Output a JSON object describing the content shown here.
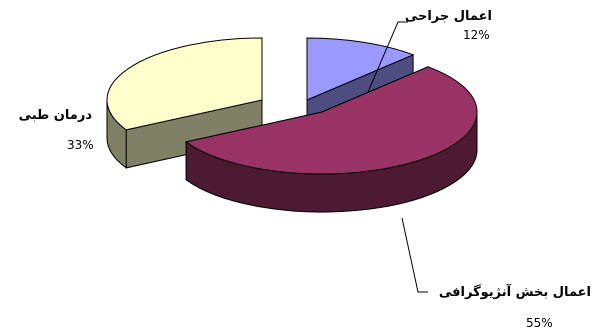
{
  "chart_data": {
    "type": "pie",
    "title": "",
    "slices": [
      {
        "label": "اعمال جراحی",
        "value_text": "12%",
        "value": 12,
        "color_top": "#9999ff",
        "color_side": "#4d4d80"
      },
      {
        "label": "اعمال بخش آنژیوگرافی",
        "value_text": "55%",
        "value": 55,
        "color_top": "#993366",
        "color_side": "#4d1a33"
      },
      {
        "label": "درمان طبی",
        "value_text": "33%",
        "value": 33,
        "color_top": "#ffffcc",
        "color_side": "#808066"
      }
    ],
    "legend": "none",
    "style": "3d-exploded-pie"
  }
}
